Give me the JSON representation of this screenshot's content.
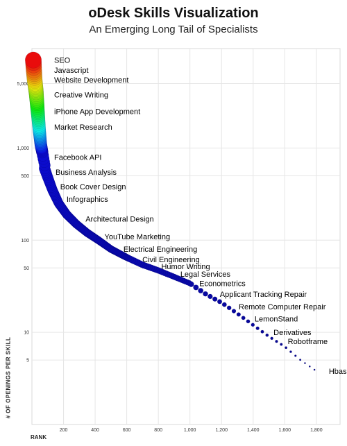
{
  "chart_data": {
    "type": "scatter",
    "title": "oDesk Skills Visualization",
    "subtitle": "An Emerging Long Tail of Specialists",
    "ylabel": "# OF OPENINGS PER SKILL",
    "xlabel": "RANK",
    "yscale": "log",
    "xlim": [
      0,
      1950
    ],
    "ylim": [
      1,
      12000
    ],
    "x_ticks": [
      200,
      400,
      600,
      800,
      1000,
      1200,
      1400,
      1600,
      1800
    ],
    "x_tick_labels": [
      "200",
      "400",
      "600",
      "800",
      "1,000",
      "1,200",
      "1,400",
      "1,600",
      "1,800"
    ],
    "y_ticks": [
      5,
      10,
      50,
      100,
      500,
      1000,
      5000
    ],
    "y_tick_labels": [
      "5",
      "10",
      "50",
      "100",
      "500",
      "1,000",
      "5,000"
    ],
    "grid": true,
    "curve": [
      [
        1,
        9000
      ],
      [
        5,
        7000
      ],
      [
        10,
        5500
      ],
      [
        20,
        4000
      ],
      [
        30,
        2500
      ],
      [
        40,
        1600
      ],
      [
        50,
        1100
      ],
      [
        60,
        900
      ],
      [
        80,
        600
      ],
      [
        100,
        480
      ],
      [
        130,
        350
      ],
      [
        170,
        250
      ],
      [
        220,
        190
      ],
      [
        280,
        150
      ],
      [
        350,
        120
      ],
      [
        420,
        100
      ],
      [
        500,
        80
      ],
      [
        600,
        65
      ],
      [
        700,
        54
      ],
      [
        800,
        47
      ],
      [
        900,
        40
      ],
      [
        1000,
        34
      ],
      [
        1100,
        26
      ],
      [
        1200,
        21
      ],
      [
        1300,
        16
      ],
      [
        1400,
        12
      ],
      [
        1500,
        9
      ],
      [
        1600,
        7
      ],
      [
        1700,
        5
      ],
      [
        1800,
        3.8
      ]
    ],
    "labeled_points": [
      {
        "label": "SEO",
        "x": 12,
        "y": 9000
      },
      {
        "label": "Javascript",
        "x": 14,
        "y": 7000
      },
      {
        "label": "Website Development",
        "x": 16,
        "y": 5500
      },
      {
        "label": "Creative Writing",
        "x": 18,
        "y": 3800
      },
      {
        "label": "iPhone App Development",
        "x": 22,
        "y": 2500
      },
      {
        "label": "Market Research",
        "x": 28,
        "y": 1700
      },
      {
        "label": "Facebook API",
        "x": 55,
        "y": 800
      },
      {
        "label": "Business Analysis",
        "x": 70,
        "y": 550
      },
      {
        "label": "Book Cover Design",
        "x": 100,
        "y": 380
      },
      {
        "label": "Infographics",
        "x": 140,
        "y": 280
      },
      {
        "label": "Architectural Design",
        "x": 260,
        "y": 170
      },
      {
        "label": "YouTube Marketing",
        "x": 380,
        "y": 110
      },
      {
        "label": "Electrical Engineering",
        "x": 500,
        "y": 80
      },
      {
        "label": "Civil Engineering",
        "x": 620,
        "y": 62
      },
      {
        "label": "Humor Writing",
        "x": 740,
        "y": 52
      },
      {
        "label": "Legal Services",
        "x": 860,
        "y": 43
      },
      {
        "label": "Econometrics",
        "x": 980,
        "y": 34
      },
      {
        "label": "Applicant Tracking Repair",
        "x": 1110,
        "y": 26
      },
      {
        "label": "Remote Computer Repair",
        "x": 1230,
        "y": 19
      },
      {
        "label": "LemonStand",
        "x": 1330,
        "y": 14
      },
      {
        "label": "Derivatives",
        "x": 1450,
        "y": 10
      },
      {
        "label": "Robotframe",
        "x": 1540,
        "y": 8
      },
      {
        "label": "Hbase",
        "x": 1800,
        "y": 3.8
      }
    ]
  }
}
